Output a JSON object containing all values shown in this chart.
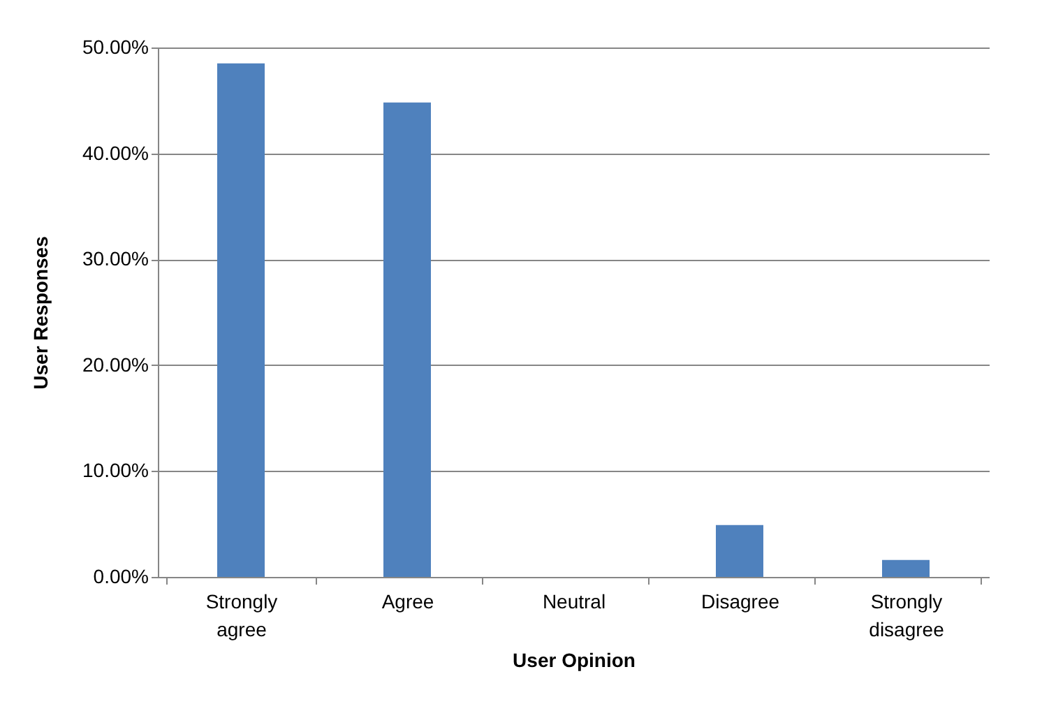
{
  "chart_data": {
    "type": "bar",
    "xlabel": "User Opinion",
    "ylabel": "User Responses",
    "categories": [
      "Strongly agree",
      "Agree",
      "Neutral",
      "Disagree",
      "Strongly disagree"
    ],
    "values": [
      48.5,
      44.8,
      0,
      4.9,
      1.6
    ],
    "color": "#4f81bd",
    "ylim": [
      0,
      50
    ],
    "yticks": [
      {
        "value": 0,
        "label": "0.00%"
      },
      {
        "value": 10,
        "label": "10.00%"
      },
      {
        "value": 20,
        "label": "20.00%"
      },
      {
        "value": 30,
        "label": "30.00%"
      },
      {
        "value": 40,
        "label": "40.00%"
      },
      {
        "value": 50,
        "label": "50.00%"
      }
    ],
    "grid": "y"
  }
}
